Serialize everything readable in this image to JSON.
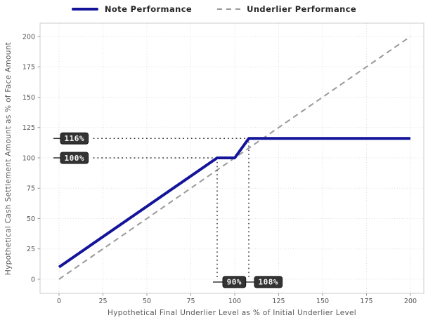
{
  "chart_data": {
    "type": "line",
    "title": "",
    "xlabel": "Hypothetical Final Underlier Level as % of Initial Underlier Level",
    "ylabel": "Hypothetical Cash Settlement Amount as % of Face Amount",
    "xlim": [
      -10.8,
      207.6
    ],
    "ylim": [
      -11.6,
      211.0
    ],
    "xticks": [
      0,
      25,
      50,
      75,
      100,
      125,
      150,
      175,
      200
    ],
    "yticks": [
      0,
      25,
      50,
      75,
      100,
      125,
      150,
      175,
      200
    ],
    "grid": true,
    "grid_style": "dotted",
    "legend_position": "top-center",
    "series": [
      {
        "name": "Note Performance",
        "style": "solid",
        "color": "#14149b",
        "width": 4,
        "points": [
          [
            0,
            10
          ],
          [
            90,
            100
          ],
          [
            100,
            100
          ],
          [
            108,
            116
          ],
          [
            200,
            116
          ]
        ]
      },
      {
        "name": "Underlier Performance",
        "style": "dashed",
        "color": "#999999",
        "width": 2,
        "points": [
          [
            0,
            0
          ],
          [
            200,
            200
          ]
        ]
      }
    ],
    "annotations": {
      "y_axis": [
        {
          "label": "116%",
          "value": 116,
          "line_to_x": 108
        },
        {
          "label": "100%",
          "value": 100,
          "line_to_x": 90
        }
      ],
      "x_axis": [
        {
          "label": "90%",
          "value": 90,
          "line_to_y": 100
        },
        {
          "label": "108%",
          "value": 108,
          "line_to_y": 116
        }
      ]
    },
    "colors": {
      "note_line": "#14149b",
      "underlier_line": "#999999",
      "grid": "#dcdcdc",
      "spine": "#cccccc",
      "tick": "#999999",
      "tick_label": "#555555",
      "axis_title": "#595959",
      "legend_text": "#262626",
      "annotation_bg": "#333333",
      "annotation_text": "#f5f5f5",
      "annotation_line": "#333333",
      "vertical_guide": "#3a3a52"
    }
  }
}
